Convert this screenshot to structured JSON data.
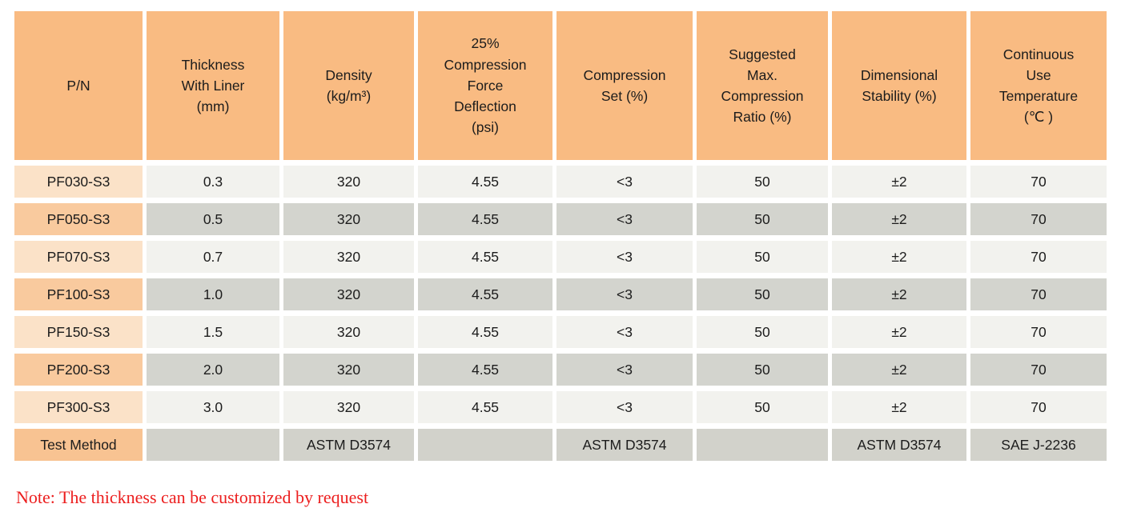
{
  "table": {
    "header": {
      "cells": [
        "P/N",
        "Thickness\nWith Liner\n(mm)",
        "Density\n(kg/m³)",
        "25%\nCompression\nForce\nDeflection\n(psi)",
        "Compression\nSet (%)",
        "Suggested\nMax.\nCompression\nRatio (%)",
        "Dimensional\nStability (%)",
        "Continuous\nUse\nTemperature\n(℃ )"
      ]
    },
    "rows": [
      {
        "cells": [
          "PF030-S3",
          "0.3",
          "320",
          "4.55",
          "<3",
          "50",
          "±2",
          "70"
        ]
      },
      {
        "cells": [
          "PF050-S3",
          "0.5",
          "320",
          "4.55",
          "<3",
          "50",
          "±2",
          "70"
        ]
      },
      {
        "cells": [
          "PF070-S3",
          "0.7",
          "320",
          "4.55",
          "<3",
          "50",
          "±2",
          "70"
        ]
      },
      {
        "cells": [
          "PF100-S3",
          "1.0",
          "320",
          "4.55",
          "<3",
          "50",
          "±2",
          "70"
        ]
      },
      {
        "cells": [
          "PF150-S3",
          "1.5",
          "320",
          "4.55",
          "<3",
          "50",
          "±2",
          "70"
        ]
      },
      {
        "cells": [
          "PF200-S3",
          "2.0",
          "320",
          "4.55",
          "<3",
          "50",
          "±2",
          "70"
        ]
      },
      {
        "cells": [
          "PF300-S3",
          "3.0",
          "320",
          "4.55",
          "<3",
          "50",
          "±2",
          "70"
        ]
      }
    ],
    "test_method_row": {
      "cells": [
        "Test Method",
        "",
        "ASTM D3574",
        "",
        "ASTM D3574",
        "",
        "ASTM D3574",
        "SAE J-2236"
      ]
    }
  },
  "note": "Note: The thickness can be customized by request",
  "colors": {
    "header_orange": "#F9BB82",
    "pn_light_peach": "#FBE2C8",
    "pn_medium_orange": "#F9CA9E",
    "pn_test_method_orange": "#F8C392",
    "cell_light_gray": "#F2F2EE",
    "cell_dark_gray": "#D3D4CE",
    "note_red": "#EC1E1E"
  },
  "chart_data": {
    "type": "table",
    "title": "",
    "columns": [
      "P/N",
      "Thickness With Liner (mm)",
      "Density (kg/m³)",
      "25% Compression Force Deflection (psi)",
      "Compression Set (%)",
      "Suggested Max. Compression Ratio (%)",
      "Dimensional Stability (%)",
      "Continuous Use Temperature (℃)"
    ],
    "rows": [
      [
        "PF030-S3",
        0.3,
        320,
        4.55,
        "<3",
        50,
        "±2",
        70
      ],
      [
        "PF050-S3",
        0.5,
        320,
        4.55,
        "<3",
        50,
        "±2",
        70
      ],
      [
        "PF070-S3",
        0.7,
        320,
        4.55,
        "<3",
        50,
        "±2",
        70
      ],
      [
        "PF100-S3",
        1.0,
        320,
        4.55,
        "<3",
        50,
        "±2",
        70
      ],
      [
        "PF150-S3",
        1.5,
        320,
        4.55,
        "<3",
        50,
        "±2",
        70
      ],
      [
        "PF200-S3",
        2.0,
        320,
        4.55,
        "<3",
        50,
        "±2",
        70
      ],
      [
        "PF300-S3",
        3.0,
        320,
        4.55,
        "<3",
        50,
        "±2",
        70
      ],
      [
        "Test Method",
        "",
        "ASTM D3574",
        "",
        "ASTM D3574",
        "",
        "ASTM D3574",
        "SAE J-2236"
      ]
    ]
  }
}
